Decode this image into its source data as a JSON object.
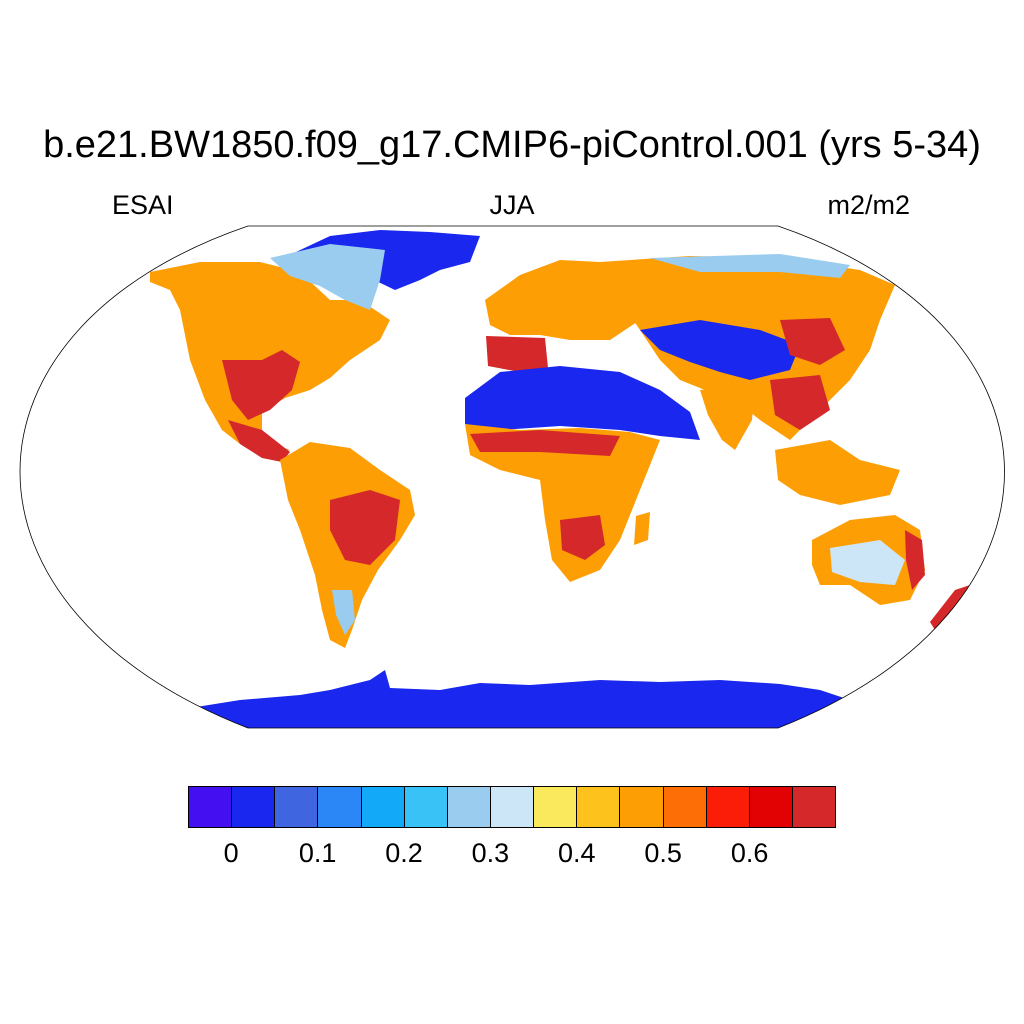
{
  "title": "b.e21.BW1850.f09_g17.CMIP6-piControl.001 (yrs 5-34)",
  "subtitle_left": "ESAI",
  "subtitle_center": "JJA",
  "subtitle_right": "m2/m2",
  "colorbar": {
    "colors": [
      "#4410f2",
      "#1a27ee",
      "#3f66e0",
      "#2a87f5",
      "#12aaf8",
      "#39c2f5",
      "#99ccee",
      "#cde6f7",
      "#fbe95d",
      "#fdc21c",
      "#fd9e05",
      "#fd6e06",
      "#fb1d08",
      "#e20103",
      "#d4282a"
    ],
    "labels": [
      "0",
      "0.1",
      "0.2",
      "0.3",
      "0.4",
      "0.5",
      "0.6"
    ]
  },
  "map": {
    "projection": "Robinson",
    "land_colors": {
      "dominant": "#fd9e05",
      "high": "#d4282a",
      "bare": "#1a27ee",
      "sparse": "#99ccee"
    }
  }
}
